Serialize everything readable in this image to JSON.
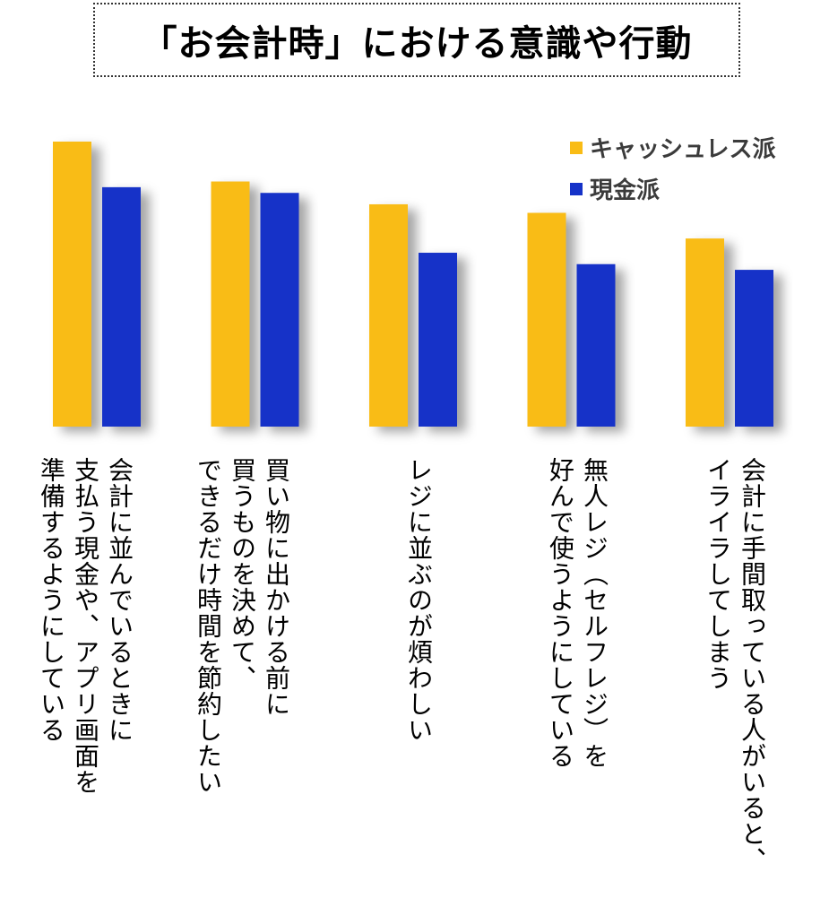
{
  "title": "「お会計時」における意識や行動",
  "colors": {
    "cashless": "#F9BC15",
    "cash": "#1532C8"
  },
  "legend": [
    {
      "label": "キャッシュレス派",
      "color": "#F9BC15"
    },
    {
      "label": "現金派",
      "color": "#1532C8"
    }
  ],
  "chart_data": {
    "type": "bar",
    "categories": [
      "会計に並んでいるときに\n支払う現金や、アプリ画面を\n準備するようにしている",
      "買い物に出かける前に\n買うものを決めて、\nできるだけ時間を節約したい",
      "レジに並ぶのが煩わしい",
      "無人レジ（セルフレジ）を\n好んで使うようにしている",
      "会計に手間取っている人がいると、\nイライラしてしまう"
    ],
    "series": [
      {
        "name": "キャッシュレス派",
        "values": [
          100,
          86,
          78,
          75,
          66
        ]
      },
      {
        "name": "現金派",
        "values": [
          84,
          82,
          61,
          57,
          55
        ]
      }
    ],
    "ylim": [
      0,
      100
    ],
    "grid": false,
    "legend_position": "top-right"
  }
}
